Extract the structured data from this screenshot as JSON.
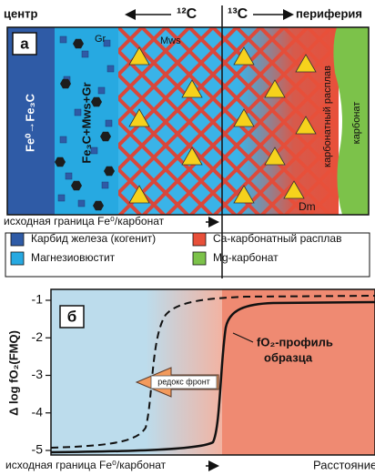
{
  "header": {
    "left": "центр",
    "c12": "¹²C",
    "c13": "¹³C",
    "right": "периферия"
  },
  "panel_a": {
    "label": "а",
    "zone_1": "Fe⁰→Fe₃C",
    "zone_2": "Fe₃C+Mws+Gr",
    "gr": "Gr",
    "mws": "Mws",
    "dm": "Dm",
    "melt": "карбонатный расплав",
    "carbonate": "карбонат",
    "boundary": "исходная граница Fe⁰/карбонат"
  },
  "legend": [
    {
      "label": "Карбид железа (когенит)",
      "color": "#2f5ba6"
    },
    {
      "label": "Магнезиовюстит",
      "color": "#27a9e1"
    },
    {
      "label": "Ca-карбонатный расплав",
      "color": "#e8503a"
    },
    {
      "label": "Mg-карбонат",
      "color": "#7cc24a"
    }
  ],
  "panel_b": {
    "label": "б",
    "y_label": "Δ log fO₂(FMQ)",
    "yticks": [
      "-1",
      "-2",
      "-3",
      "-4",
      "-5"
    ],
    "profile": [
      "fO₂-профиль",
      "образца"
    ],
    "front": "редокс фронт",
    "boundary": "исходная граница Fe⁰/карбонат",
    "x_label": "Расстояние"
  }
}
